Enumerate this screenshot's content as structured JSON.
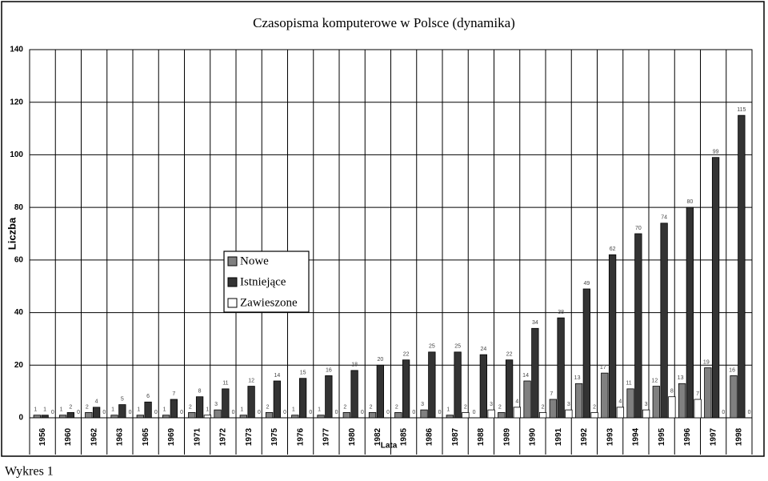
{
  "chart_data": {
    "type": "bar",
    "title": "Czasopisma komputerowe w Polsce (dynamika)",
    "y_label": "Liczba",
    "x_label": "Lata",
    "caption": "Wykres 1",
    "categories": [
      "1956",
      "1960",
      "1962",
      "1963",
      "1965",
      "1969",
      "1971",
      "1972",
      "1973",
      "1975",
      "1976",
      "1977",
      "1980",
      "1982",
      "1985",
      "1986",
      "1987",
      "1988",
      "1989",
      "1990",
      "1991",
      "1992",
      "1993",
      "1994",
      "1995",
      "1996",
      "1997",
      "1998"
    ],
    "series": [
      {
        "name": "Nowe",
        "color": "#808080",
        "values": [
          1,
          1,
          2,
          1,
          1,
          1,
          2,
          3,
          1,
          2,
          1,
          1,
          2,
          2,
          2,
          3,
          1,
          0,
          2,
          14,
          7,
          13,
          17,
          11,
          12,
          13,
          19,
          16
        ]
      },
      {
        "name": "Istniejące",
        "color": "#333333",
        "values": [
          1,
          2,
          4,
          5,
          6,
          7,
          8,
          11,
          12,
          14,
          15,
          16,
          18,
          20,
          22,
          25,
          25,
          24,
          22,
          34,
          38,
          49,
          62,
          70,
          74,
          80,
          99,
          115
        ]
      },
      {
        "name": "Zawieszone",
        "color": "#ffffff",
        "values": [
          0,
          0,
          0,
          0,
          0,
          0,
          1,
          0,
          0,
          0,
          0,
          0,
          0,
          0,
          0,
          0,
          2,
          3,
          4,
          2,
          3,
          2,
          4,
          3,
          8,
          7,
          0,
          0
        ]
      }
    ],
    "ylim": [
      0,
      140
    ],
    "yticks": [
      0,
      20,
      40,
      60,
      80,
      100,
      120,
      140
    ],
    "grid": true
  }
}
